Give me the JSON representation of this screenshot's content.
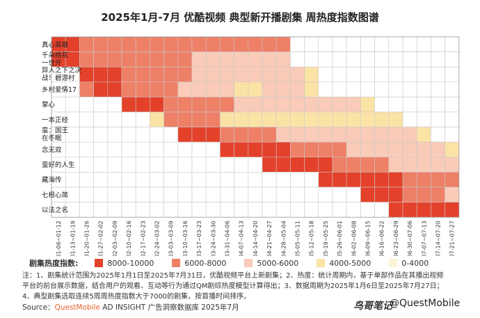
{
  "title": "2025年1月-7月 优酷视频 典型新开播剧集 周热度指数图谱",
  "legend": {
    "title": "剧集热度指数:",
    "items": [
      {
        "label": "8000-10000",
        "color": "#e4412a"
      },
      {
        "label": "6000-8000",
        "color": "#ee8067"
      },
      {
        "label": "5000-6000",
        "color": "#f9cbb8"
      },
      {
        "label": "4000-5000",
        "color": "#fbe3a6"
      },
      {
        "label": "0-4000",
        "color": "#fdf3d6"
      }
    ]
  },
  "notes": "注：1、剧集统计范围为2025年1月1日至2025年7月31日，优酷视频平台上新剧集；2、热度：统计周期内，基于单部作品在其播出视频平台的前台展示数据，结合用户的观看、互动等行为通过QM剧综热度模型计算得出；3、数据周期为2025年1月6日至2025年7月27日；4、典型剧集选取连续5周周热度指数大于7000的剧集，按首播时间排序。",
  "source": {
    "prefix": "Source：",
    "brand": "QuestMobile",
    "text": " AD INSIGHT 广告洞察数据库 2025年7月"
  },
  "watermark": {
    "brand": "鸟哥笔记",
    "handle": "@QuestMobile"
  },
  "chart_data": {
    "type": "heatmap",
    "title": "2025年1月-7月 优酷视频 典型新开播剧集 周热度指数图谱",
    "weeks": [
      "01-06~01-12",
      "01-13~01-19",
      "01-20~01-26",
      "01-27~02-02",
      "02-03~02-09",
      "02-10~02-16",
      "02-17~02-23",
      "02-24~03-02",
      "03-03~03-09",
      "03-10~03-16",
      "03-17~03-23",
      "03-24~03-30",
      "03-31~04-06",
      "04-07~04-13",
      "04-14~04-20",
      "04-21~04-27",
      "04-28~05-04",
      "05-05~05-11",
      "05-12~05-18",
      "05-19~05-25",
      "05-26~06-01",
      "06-02~06-08",
      "06-09~06-15",
      "06-16~06-22",
      "06-23~06-29",
      "06-30~07-06",
      "07-07~07-13",
      "07-14~07-20",
      "07-21~07-27"
    ],
    "series": [
      {
        "name": "真心英雄",
        "levels": [
          1,
          1,
          2,
          2,
          2,
          2,
          2,
          2,
          2,
          2,
          2,
          2,
          2,
          2,
          2,
          2,
          2,
          0,
          0,
          0,
          0,
          0,
          0,
          0,
          0,
          0,
          0,
          0,
          0
        ]
      },
      {
        "name": "千朵桃花一世开",
        "levels": [
          1,
          1,
          2,
          2,
          2,
          2,
          2,
          2,
          2,
          2,
          3,
          3,
          3,
          3,
          3,
          3,
          3,
          0,
          0,
          0,
          0,
          0,
          0,
          0,
          0,
          0,
          0,
          0,
          0
        ]
      },
      {
        "name": "异人之下之决战！碧游村",
        "levels": [
          0,
          0,
          1,
          1,
          1,
          2,
          2,
          2,
          2,
          2,
          3,
          3,
          3,
          3,
          3,
          3,
          3,
          3,
          4,
          0,
          0,
          0,
          0,
          0,
          0,
          0,
          0,
          0,
          0
        ]
      },
      {
        "name": "乡村爱情17",
        "levels": [
          0,
          0,
          2,
          1,
          1,
          2,
          2,
          2,
          2,
          3,
          3,
          3,
          3,
          4,
          4,
          3,
          3,
          3,
          4,
          0,
          0,
          0,
          0,
          0,
          0,
          0,
          0,
          0,
          0
        ]
      },
      {
        "name": "掌心",
        "levels": [
          0,
          0,
          0,
          0,
          0,
          1,
          1,
          1,
          2,
          2,
          2,
          2,
          2,
          3,
          3,
          3,
          3,
          3,
          3,
          3,
          3,
          3,
          4,
          0,
          0,
          0,
          0,
          0,
          0
        ]
      },
      {
        "name": "一本正经",
        "levels": [
          0,
          0,
          0,
          0,
          0,
          0,
          0,
          4,
          2,
          2,
          2,
          2,
          4,
          4,
          4,
          4,
          4,
          4,
          4,
          4,
          4,
          4,
          4,
          4,
          4,
          0,
          0,
          0,
          0
        ]
      },
      {
        "name": "蛮：国王在冬眠",
        "levels": [
          0,
          0,
          0,
          0,
          0,
          0,
          0,
          0,
          0,
          1,
          1,
          1,
          2,
          2,
          2,
          2,
          3,
          3,
          3,
          3,
          3,
          3,
          3,
          3,
          3,
          3,
          4,
          0,
          0
        ]
      },
      {
        "name": "念无双",
        "levels": [
          0,
          0,
          0,
          0,
          0,
          0,
          0,
          0,
          0,
          0,
          0,
          0,
          1,
          1,
          1,
          1,
          1,
          2,
          2,
          2,
          2,
          3,
          3,
          3,
          3,
          3,
          3,
          3,
          4
        ]
      },
      {
        "name": "蛮好的人生",
        "levels": [
          0,
          0,
          0,
          0,
          0,
          0,
          0,
          0,
          0,
          0,
          0,
          0,
          0,
          0,
          0,
          1,
          1,
          1,
          1,
          1,
          2,
          2,
          2,
          2,
          3,
          3,
          3,
          3,
          3
        ]
      },
      {
        "name": "藏海传",
        "levels": [
          0,
          0,
          0,
          0,
          0,
          0,
          0,
          0,
          0,
          0,
          0,
          0,
          0,
          0,
          0,
          0,
          0,
          0,
          0,
          1,
          1,
          1,
          1,
          1,
          1,
          2,
          2,
          2,
          2
        ]
      },
      {
        "name": "七根心简",
        "levels": [
          0,
          0,
          0,
          0,
          0,
          0,
          0,
          0,
          0,
          0,
          0,
          0,
          0,
          0,
          0,
          0,
          0,
          0,
          0,
          0,
          0,
          0,
          1,
          1,
          1,
          2,
          2,
          2,
          3
        ]
      },
      {
        "name": "以法之名",
        "levels": [
          0,
          0,
          0,
          0,
          0,
          0,
          0,
          0,
          0,
          0,
          0,
          0,
          0,
          0,
          0,
          0,
          0,
          0,
          0,
          0,
          0,
          0,
          0,
          0,
          1,
          1,
          1,
          1,
          1
        ]
      }
    ],
    "level_labels": [
      "",
      "8000-10000",
      "6000-8000",
      "5000-6000",
      "4000-5000",
      "0-4000"
    ],
    "level_colors": [
      "#ffffff",
      "#e4412a",
      "#ee8067",
      "#f9cbb8",
      "#fbe3a6",
      "#fdf3d6"
    ],
    "grid": true,
    "legend_position": "bottom-left"
  }
}
